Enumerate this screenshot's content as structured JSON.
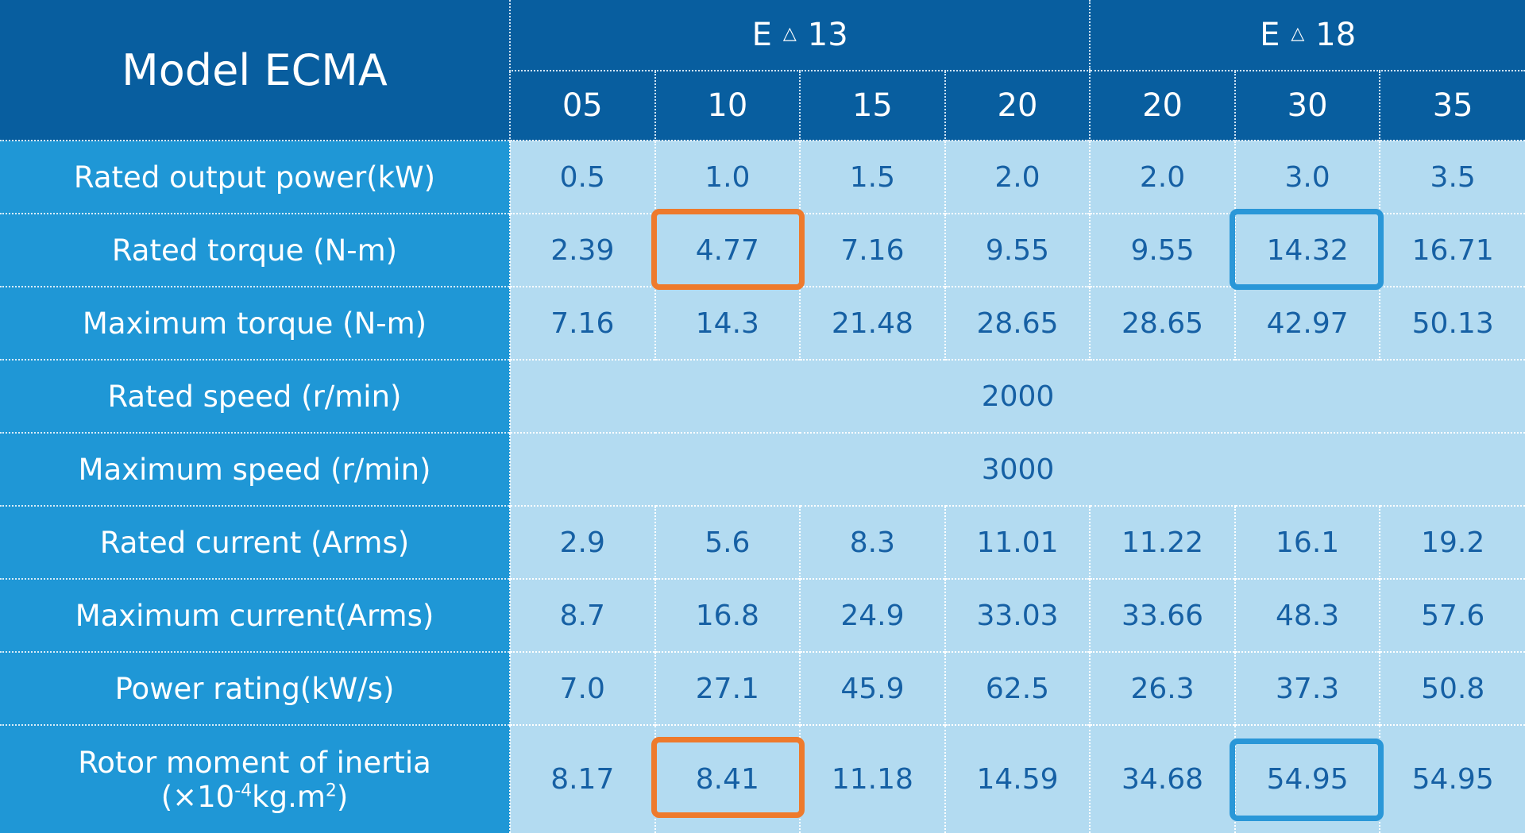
{
  "header": {
    "title": "Model ECMA",
    "groups": [
      {
        "prefix": "E",
        "symbol": "△",
        "model": "13",
        "columns": [
          "05",
          "10",
          "15",
          "20"
        ]
      },
      {
        "prefix": "E",
        "symbol": "△",
        "model": "18",
        "columns": [
          "20",
          "30",
          "35"
        ]
      }
    ]
  },
  "rows": [
    {
      "label": "Rated output power(kW)",
      "values": [
        "0.5",
        "1.0",
        "1.5",
        "2.0",
        "2.0",
        "3.0",
        "3.5"
      ]
    },
    {
      "label": "Rated torque  (N-m)",
      "values": [
        "2.39",
        "4.77",
        "7.16",
        "9.55",
        "9.55",
        "14.32",
        "16.71"
      ]
    },
    {
      "label": "Maximum torque  (N-m)",
      "values": [
        "7.16",
        "14.3",
        "21.48",
        "28.65",
        "28.65",
        "42.97",
        "50.13"
      ]
    },
    {
      "label": "Rated speed (r/min)",
      "value": "2000"
    },
    {
      "label": "Maximum speed  (r/min)",
      "value": "3000"
    },
    {
      "label": "Rated current (Arms)",
      "values": [
        "2.9",
        "5.6",
        "8.3",
        "11.01",
        "11.22",
        "16.1",
        "19.2"
      ]
    },
    {
      "label": "Maximum current(Arms)",
      "values": [
        "8.7",
        "16.8",
        "24.9",
        "33.03",
        "33.66",
        "48.3",
        "57.6"
      ]
    },
    {
      "label": "Power rating(kW/s)",
      "values": [
        "7.0",
        "27.1",
        "45.9",
        "62.5",
        "26.3",
        "37.3",
        "50.8"
      ]
    },
    {
      "label": "Rotor moment of inertia",
      "unit": {
        "open": "(×10",
        "exp": "-4",
        "base": "kg.m",
        "power": "2",
        "close": ")"
      },
      "values": [
        "8.17",
        "8.41",
        "11.18",
        "14.59",
        "34.68",
        "54.95",
        "54.95"
      ]
    }
  ]
}
